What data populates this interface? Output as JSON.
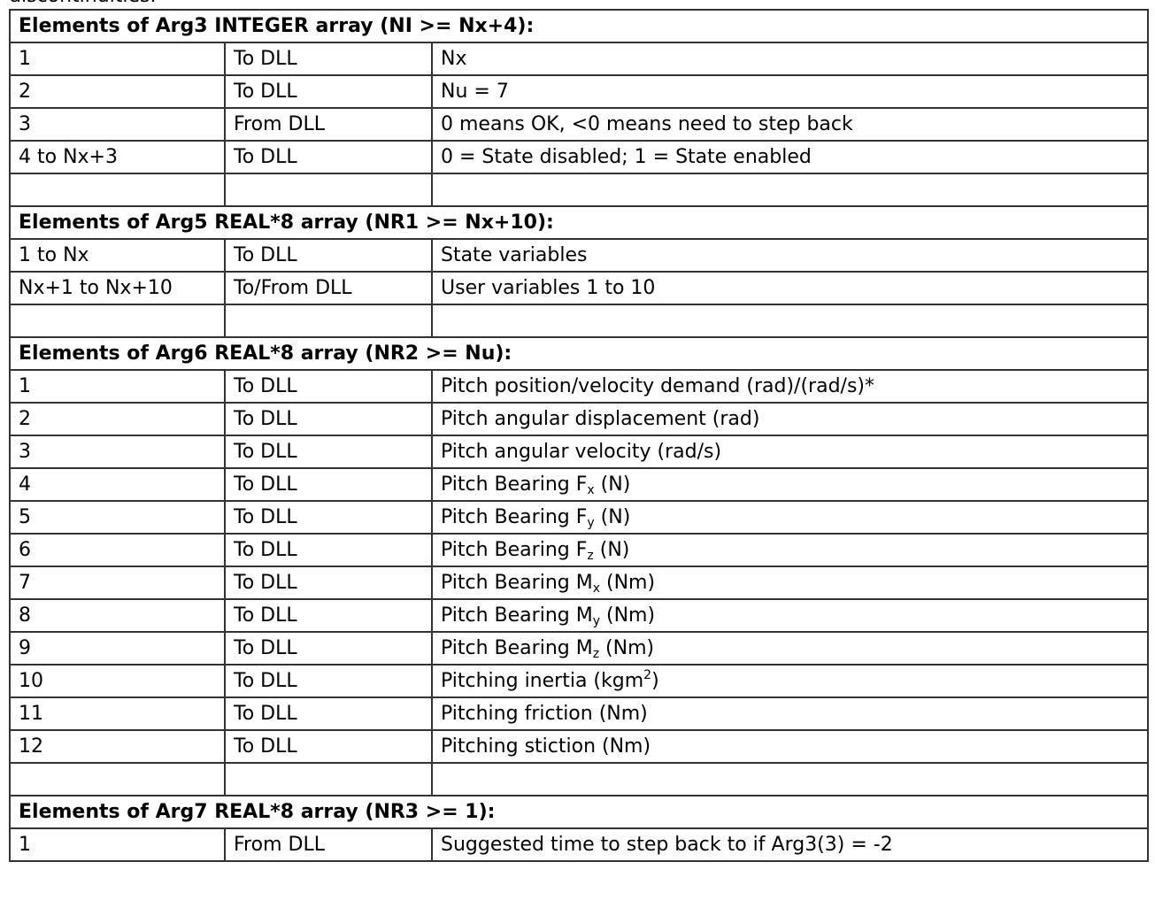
{
  "preceding_text": "discontinuities.",
  "sections": [
    {
      "heading": "Elements of Arg3 INTEGER array (NI >= Nx+4):",
      "rows": [
        {
          "element": "1",
          "direction": "To DLL",
          "description": "Nx"
        },
        {
          "element": "2",
          "direction": "To DLL",
          "description": "Nu = 7"
        },
        {
          "element": "3",
          "direction": "From DLL",
          "description": "0 means OK, <0 means need to step back"
        },
        {
          "element": "4 to Nx+3",
          "direction": "To DLL",
          "description": "0 = State disabled; 1 = State enabled"
        }
      ],
      "trailing_blank": true
    },
    {
      "heading": "Elements of Arg5 REAL*8 array (NR1 >= Nx+10):",
      "rows": [
        {
          "element": "1 to Nx",
          "direction": "To DLL",
          "description": "State variables"
        },
        {
          "element": "Nx+1 to Nx+10",
          "direction": "To/From DLL",
          "description": "User variables 1 to 10"
        }
      ],
      "trailing_blank": true
    },
    {
      "heading": "Elements of Arg6 REAL*8 array (NR2 >= Nu):",
      "rows": [
        {
          "element": "1",
          "direction": "To DLL",
          "description": "Pitch position/velocity demand (rad)/(rad/s)*"
        },
        {
          "element": "2",
          "direction": "To DLL",
          "description": "Pitch angular displacement (rad)"
        },
        {
          "element": "3",
          "direction": "To DLL",
          "description": "Pitch angular velocity (rad/s)"
        },
        {
          "element": "4",
          "direction": "To DLL",
          "description": "Pitch Bearing F",
          "sub": "x",
          "suffix": " (N)"
        },
        {
          "element": "5",
          "direction": "To DLL",
          "description": "Pitch Bearing F",
          "sub": "y",
          "suffix": " (N)"
        },
        {
          "element": "6",
          "direction": "To DLL",
          "description": "Pitch Bearing F",
          "sub": "z",
          "suffix": " (N)"
        },
        {
          "element": "7",
          "direction": "To DLL",
          "description": "Pitch Bearing M",
          "sub": "x",
          "suffix": " (Nm)"
        },
        {
          "element": "8",
          "direction": "To DLL",
          "description": "Pitch Bearing M",
          "sub": "y",
          "suffix": " (Nm)"
        },
        {
          "element": "9",
          "direction": "To DLL",
          "description": "Pitch Bearing M",
          "sub": "z",
          "suffix": " (Nm)"
        },
        {
          "element": "10",
          "direction": "To DLL",
          "description": "Pitching inertia (kgm",
          "sup": "2",
          "suffix": ")"
        },
        {
          "element": "11",
          "direction": "To DLL",
          "description": "Pitching friction (Nm)"
        },
        {
          "element": "12",
          "direction": "To DLL",
          "description": "Pitching stiction (Nm)"
        }
      ],
      "trailing_blank": true
    },
    {
      "heading": "Elements of Arg7 REAL*8 array (NR3 >= 1):",
      "rows": [
        {
          "element": "1",
          "direction": "From DLL",
          "description": "Suggested time to step back to if Arg3(3) = -2"
        }
      ],
      "trailing_blank": false
    }
  ]
}
